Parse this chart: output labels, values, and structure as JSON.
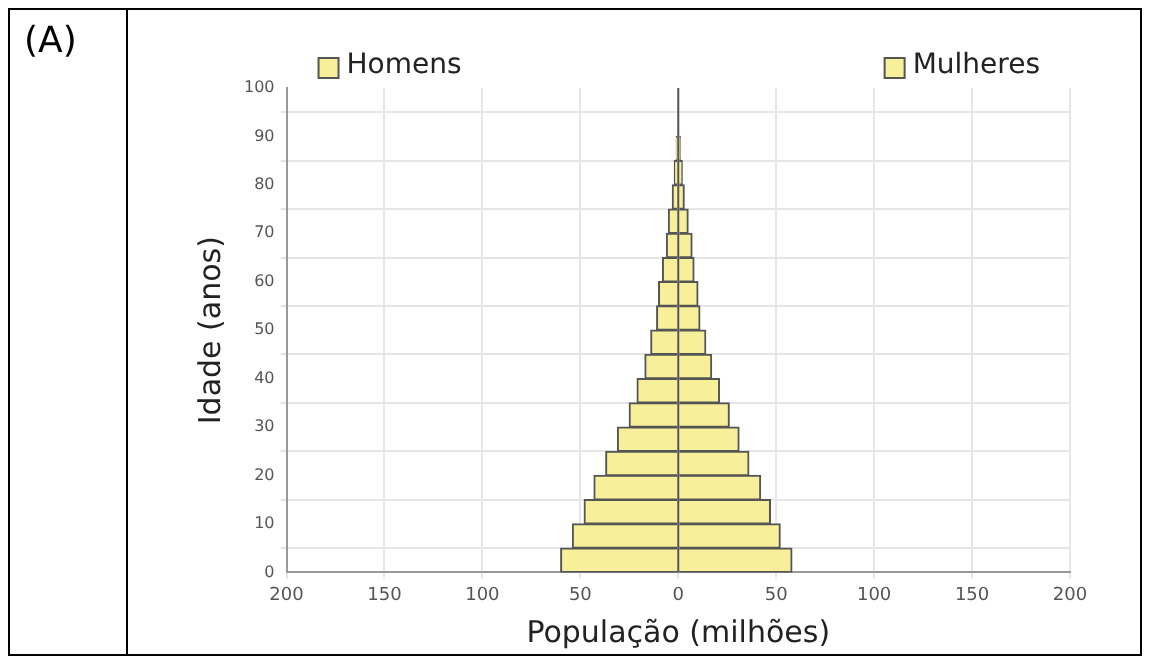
{
  "chart_data": {
    "type": "bar",
    "orientation": "horizontal",
    "stacked": true,
    "xlabel": "População (milhões)",
    "ylabel": "Idade (anos)",
    "annotations": [
      "(A)"
    ],
    "x": [
      2.5,
      7.5,
      12.5,
      17.5,
      22.5,
      27.5,
      32.5,
      37.5,
      42.5,
      47.5,
      52.5,
      57.5,
      62.5,
      67.5,
      72.5,
      77.5,
      82.5,
      87.5
    ],
    "series": [
      {
        "name": "Homens",
        "color": "#f7ef99",
        "values": [
          -60,
          -54,
          -48,
          -43,
          -37,
          -31,
          -25,
          -21,
          -17,
          -14,
          -11,
          -10,
          -8,
          -6,
          -5,
          -3,
          -2,
          -1
        ]
      },
      {
        "name": "Mulheres",
        "color": "#f7ef99",
        "values": [
          58,
          52,
          47,
          42,
          36,
          31,
          26,
          21,
          17,
          14,
          11,
          10,
          8,
          7,
          5,
          3,
          2,
          1
        ]
      }
    ],
    "xlim": [
      -200,
      200
    ],
    "xticks": [
      {
        "value": -200,
        "label": "200"
      },
      {
        "value": -150,
        "label": "150"
      },
      {
        "value": -100,
        "label": "100"
      },
      {
        "value": -50,
        "label": "50"
      },
      0,
      50,
      100,
      150,
      200
    ],
    "ylim": [
      0,
      100
    ],
    "yticks": [
      0,
      10,
      20,
      30,
      40,
      50,
      60,
      70,
      80,
      90,
      100
    ],
    "grid": true,
    "legend": "top"
  }
}
